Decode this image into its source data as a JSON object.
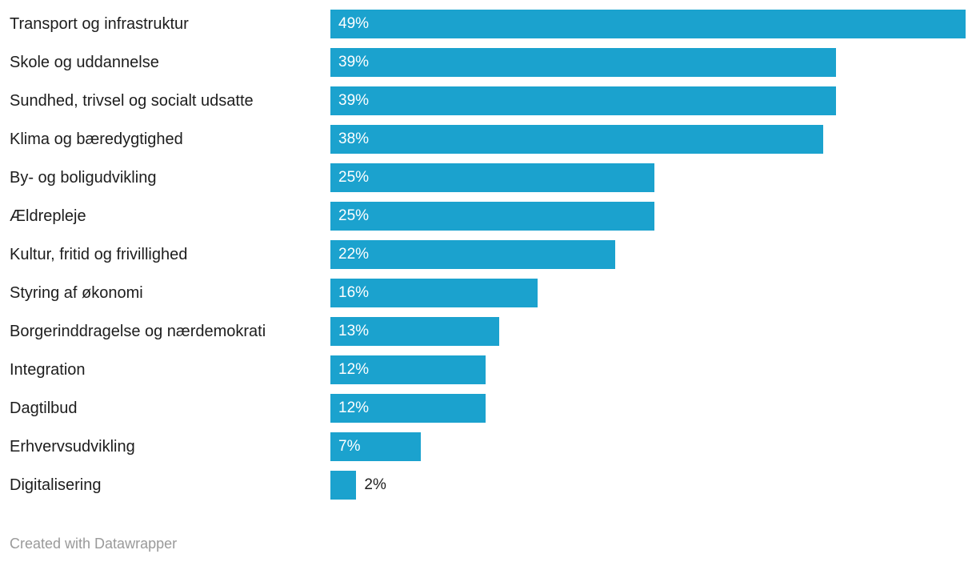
{
  "chart_data": {
    "type": "bar",
    "orientation": "horizontal",
    "title": "",
    "xlabel": "",
    "ylabel": "",
    "xlim": [
      0,
      49
    ],
    "grid": false,
    "legend": false,
    "bar_color": "#1BA2CE",
    "category_label_color": "#1d1d1d",
    "value_label_inside_color": "#ffffff",
    "value_label_outside_color": "#1d1d1d",
    "categories": [
      "Transport og infrastruktur",
      "Skole og uddannelse",
      "Sundhed, trivsel og socialt udsatte",
      "Klima og bæredygtighed",
      "By- og boligudvikling",
      "Ældrepleje",
      "Kultur, fritid og frivillighed",
      "Styring af økonomi",
      "Borgerinddragelse og nærdemokrati",
      "Integration",
      "Dagtilbud",
      "Erhvervsudvikling",
      "Digitalisering"
    ],
    "values": [
      49,
      39,
      39,
      38,
      25,
      25,
      22,
      16,
      13,
      12,
      12,
      7,
      2
    ],
    "value_labels": [
      "49%",
      "39%",
      "39%",
      "38%",
      "25%",
      "25%",
      "22%",
      "16%",
      "13%",
      "12%",
      "12%",
      "7%",
      "2%"
    ]
  },
  "footer": {
    "attribution": "Created with Datawrapper"
  }
}
